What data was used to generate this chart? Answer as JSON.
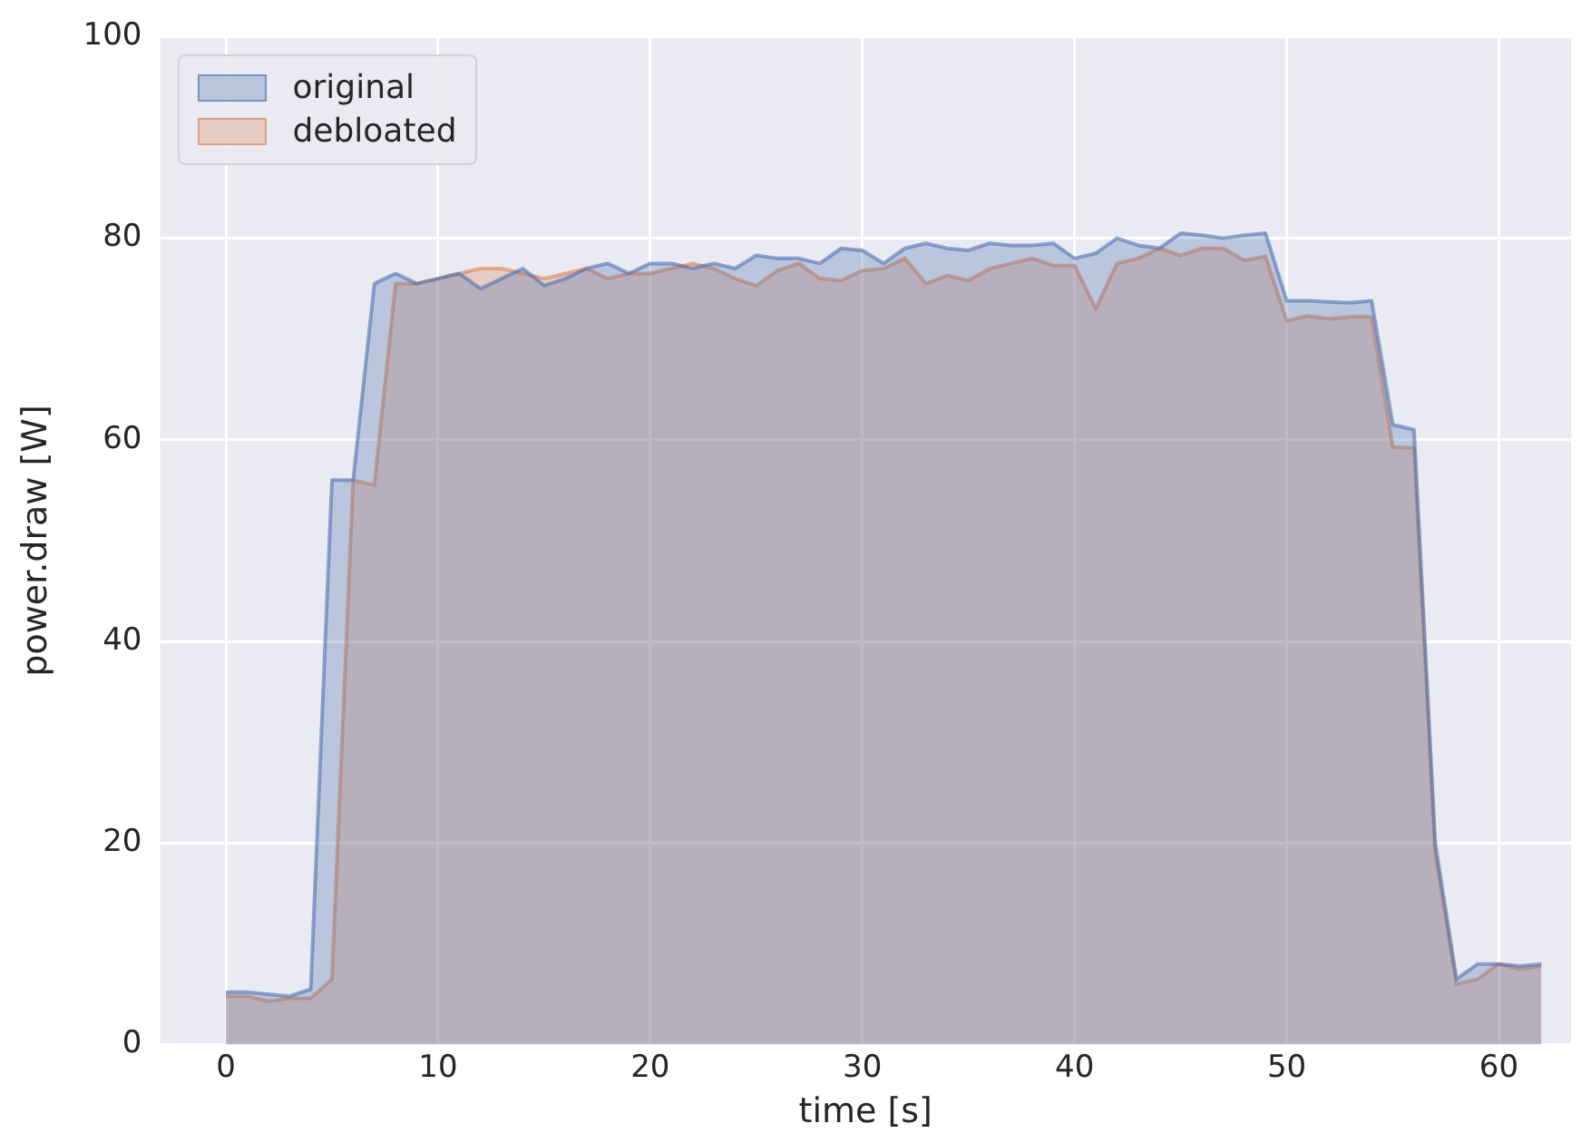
{
  "chart_data": {
    "type": "area",
    "xlabel": "time [s]",
    "ylabel": "power.draw [W]",
    "x": [
      0,
      1,
      2,
      3,
      4,
      5,
      6,
      7,
      8,
      9,
      10,
      11,
      12,
      13,
      14,
      15,
      16,
      17,
      18,
      19,
      20,
      21,
      22,
      23,
      24,
      25,
      26,
      27,
      28,
      29,
      30,
      31,
      32,
      33,
      34,
      35,
      36,
      37,
      38,
      39,
      40,
      41,
      42,
      43,
      44,
      45,
      46,
      47,
      48,
      49,
      50,
      51,
      52,
      53,
      54,
      55,
      56,
      57,
      58,
      59,
      60,
      61,
      62
    ],
    "series": [
      {
        "name": "original",
        "color": "#4c72b0",
        "values": [
          5.2,
          5.2,
          5,
          4.8,
          5.5,
          56,
          56,
          75.5,
          76.5,
          75.5,
          76,
          76.5,
          75,
          76,
          77,
          75.3,
          76,
          77,
          77.5,
          76.5,
          77.5,
          77.5,
          77,
          77.5,
          77,
          78.3,
          78,
          78,
          77.5,
          79,
          78.8,
          77.5,
          79,
          79.5,
          79,
          78.8,
          79.5,
          79.3,
          79.3,
          79.5,
          78,
          78.5,
          80,
          79.3,
          79,
          80.5,
          80.3,
          80,
          80.3,
          80.5,
          73.8,
          73.8,
          73.7,
          73.6,
          73.8,
          61.5,
          61,
          20,
          6.5,
          8,
          8,
          7.8,
          8
        ]
      },
      {
        "name": "debloated",
        "color": "#dd8452",
        "values": [
          4.8,
          4.8,
          4.3,
          4.6,
          4.6,
          6.5,
          56,
          55.5,
          75.5,
          75.5,
          76,
          76.5,
          77,
          77,
          76.5,
          76,
          76.5,
          77,
          76,
          76.5,
          76.5,
          77,
          77.5,
          77,
          76,
          75.3,
          76.8,
          77.5,
          76,
          75.8,
          76.8,
          77,
          78,
          75.5,
          76.3,
          75.8,
          77,
          77.5,
          78,
          77.3,
          77.3,
          73,
          77.5,
          78,
          79,
          78.3,
          79,
          79,
          77.8,
          78.2,
          71.8,
          72.3,
          72,
          72.2,
          72.2,
          59.3,
          59.2,
          19,
          6,
          6.5,
          8,
          7.5,
          7.8
        ]
      }
    ],
    "xlim": [
      -3.1,
      63.4
    ],
    "xticks": [
      0,
      10,
      20,
      30,
      40,
      50,
      60
    ],
    "ylim": [
      0,
      100
    ],
    "yticks": [
      0,
      20,
      40,
      60,
      80,
      100
    ],
    "grid": true,
    "legend": "top left",
    "marker": "none",
    "line_style": "solid"
  }
}
